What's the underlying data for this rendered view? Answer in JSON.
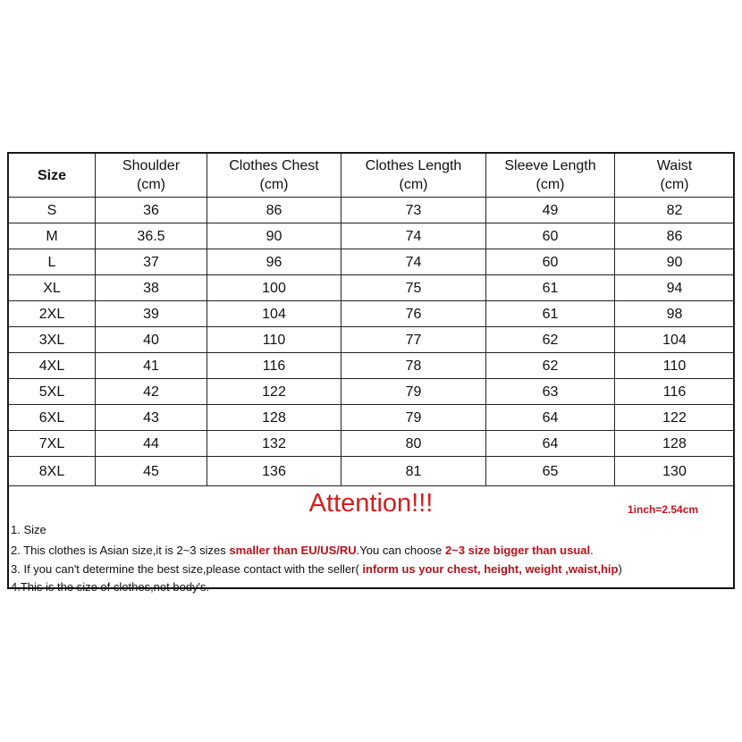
{
  "headers": [
    {
      "title": "Size",
      "unit": ""
    },
    {
      "title": "Shoulder",
      "unit": "(cm)"
    },
    {
      "title": "Clothes Chest",
      "unit": "(cm)"
    },
    {
      "title": "Clothes Length",
      "unit": "(cm)"
    },
    {
      "title": "Sleeve Length",
      "unit": "(cm)"
    },
    {
      "title": "Waist",
      "unit": "(cm)"
    }
  ],
  "rows": [
    [
      "S",
      "36",
      "86",
      "73",
      "49",
      "82"
    ],
    [
      "M",
      "36.5",
      "90",
      "74",
      "60",
      "86"
    ],
    [
      "L",
      "37",
      "96",
      "74",
      "60",
      "90"
    ],
    [
      "XL",
      "38",
      "100",
      "75",
      "61",
      "94"
    ],
    [
      "2XL",
      "39",
      "104",
      "76",
      "61",
      "98"
    ],
    [
      "3XL",
      "40",
      "110",
      "77",
      "62",
      "104"
    ],
    [
      "4XL",
      "41",
      "116",
      "78",
      "62",
      "110"
    ],
    [
      "5XL",
      "42",
      "122",
      "79",
      "63",
      "116"
    ],
    [
      "6XL",
      "43",
      "128",
      "79",
      "64",
      "122"
    ],
    [
      "7XL",
      "44",
      "132",
      "80",
      "64",
      "128"
    ],
    [
      "8XL",
      "45",
      "136",
      "81",
      "65",
      "130"
    ]
  ],
  "attention": "Attention!!!",
  "conversion": "1inch=2.54cm",
  "accent_color": "#c0161b",
  "notes": [
    [
      {
        "text": "1. Size",
        "red": false
      }
    ],
    [
      {
        "text": "2. This clothes is Asian size,it is 2~3 sizes ",
        "red": false
      },
      {
        "text": "smaller than EU/US/RU",
        "red": true
      },
      {
        "text": ".You can choose ",
        "red": false
      },
      {
        "text": "2~3 size bigger than usual",
        "red": true
      },
      {
        "text": ".",
        "red": false
      }
    ],
    [
      {
        "text": "3. If you can't determine the best size,please contact with the seller( ",
        "red": false
      },
      {
        "text": "inform us your chest, height, weight ,waist,hip",
        "red": true
      },
      {
        "text": ")",
        "red": false
      }
    ],
    [
      {
        "text": "4.This is the size of clothes,not body's.",
        "red": false
      }
    ]
  ]
}
